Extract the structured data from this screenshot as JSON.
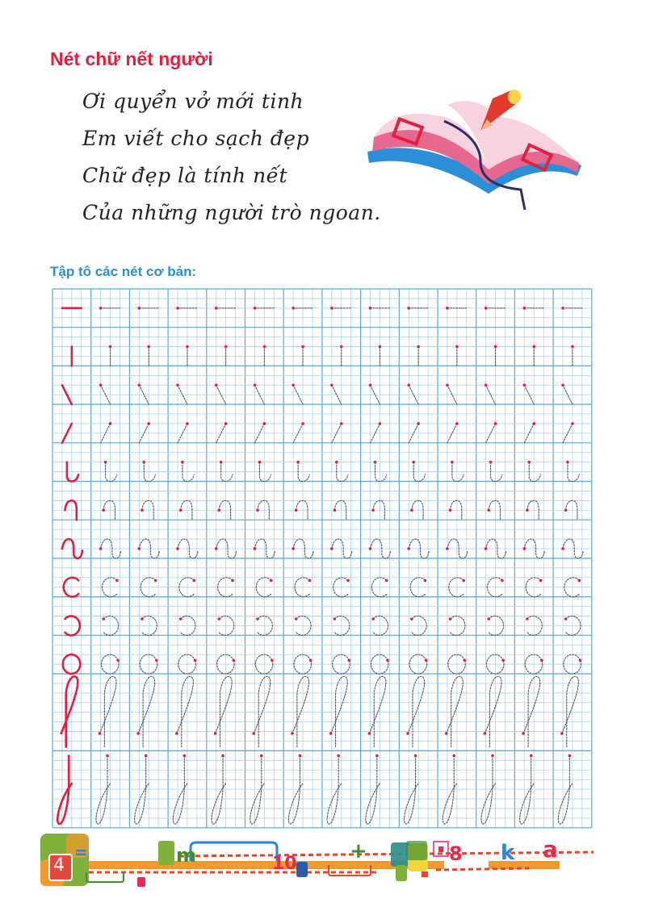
{
  "title": "Nét chữ nết người",
  "poem": [
    "Ơi quyển vở mới tinh",
    "Em viết cho sạch đẹp",
    "Chữ đẹp là tính nết",
    "Của những người trò ngoan."
  ],
  "illustration": "open-book-with-pencil",
  "exercise": {
    "heading": "Tập tô các nét cơ bản:",
    "practice_columns": 13,
    "rows": [
      "horizontal-stroke",
      "vertical-stroke",
      "backslash-stroke",
      "slash-stroke",
      "right-hook-stroke",
      "left-hook-stroke",
      "double-hook-stroke",
      "open-right-curve-stroke",
      "open-left-curve-stroke",
      "oval-stroke",
      "upper-loop-stroke",
      "lower-loop-stroke"
    ]
  },
  "footer": {
    "page_number": "4",
    "decor": [
      "=",
      "m",
      "10",
      "+",
      "8",
      "k",
      "a"
    ]
  },
  "colors": {
    "title": "#e0203f",
    "heading": "#2a8fd6",
    "model_stroke": "#e0203f",
    "trace_stroke": "#555555",
    "grid_major": "#5aa6de",
    "grid_minor": "#a9d3f2",
    "footer_bar": "#f39a2e"
  }
}
